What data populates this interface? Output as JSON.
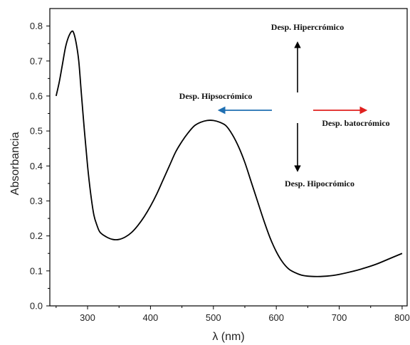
{
  "chart_data": {
    "type": "line",
    "title": "",
    "xlabel": "λ (nm)",
    "ylabel": "Absorbancia",
    "xlim": [
      240,
      808
    ],
    "ylim": [
      0.0,
      0.85
    ],
    "xticks": [
      300,
      400,
      500,
      600,
      700,
      800
    ],
    "xtick_labels": [
      "300",
      "400",
      "500",
      "600",
      "700",
      "800"
    ],
    "yticks": [
      0.0,
      0.1,
      0.2,
      0.3,
      0.4,
      0.5,
      0.6,
      0.7,
      0.8
    ],
    "ytick_labels": [
      "0.0",
      "0.1",
      "0.2",
      "0.3",
      "0.4",
      "0.5",
      "0.6",
      "0.7",
      "0.8"
    ],
    "grid": false,
    "line_color": "#000000",
    "series": [
      {
        "x": [
          250,
          255,
          260,
          265,
          270,
          275,
          278,
          282,
          286,
          290,
          295,
          300,
          305,
          310,
          315,
          320,
          330,
          340,
          350,
          360,
          370,
          380,
          390,
          400,
          410,
          420,
          430,
          440,
          450,
          460,
          470,
          480,
          490,
          500,
          510,
          520,
          530,
          540,
          550,
          560,
          570,
          580,
          590,
          600,
          610,
          620,
          630,
          640,
          650,
          660,
          670,
          680,
          690,
          700,
          720,
          740,
          760,
          780,
          800
        ],
        "y": [
          0.6,
          0.64,
          0.69,
          0.74,
          0.77,
          0.785,
          0.78,
          0.75,
          0.7,
          0.61,
          0.5,
          0.4,
          0.32,
          0.26,
          0.23,
          0.21,
          0.197,
          0.19,
          0.19,
          0.197,
          0.21,
          0.23,
          0.255,
          0.285,
          0.32,
          0.36,
          0.4,
          0.44,
          0.47,
          0.495,
          0.515,
          0.525,
          0.53,
          0.53,
          0.525,
          0.515,
          0.49,
          0.455,
          0.41,
          0.355,
          0.3,
          0.245,
          0.195,
          0.155,
          0.125,
          0.105,
          0.095,
          0.088,
          0.085,
          0.084,
          0.084,
          0.085,
          0.087,
          0.09,
          0.098,
          0.108,
          0.12,
          0.135,
          0.15
        ]
      }
    ],
    "annotations": [
      {
        "id": "hipercromico",
        "text": "Desp. Hipercrómico",
        "arrow": "up",
        "arrow_color": "#000000"
      },
      {
        "id": "hipsocromico",
        "text": "Desp. Hipsocrómico",
        "arrow": "left",
        "arrow_color": "#1f6fb2"
      },
      {
        "id": "batocromico",
        "text": "Desp. batocrómico",
        "arrow": "right",
        "arrow_color": "#e0201e"
      },
      {
        "id": "hipocromico",
        "text": "Desp. Hipocrómico",
        "arrow": "down",
        "arrow_color": "#000000"
      }
    ]
  }
}
